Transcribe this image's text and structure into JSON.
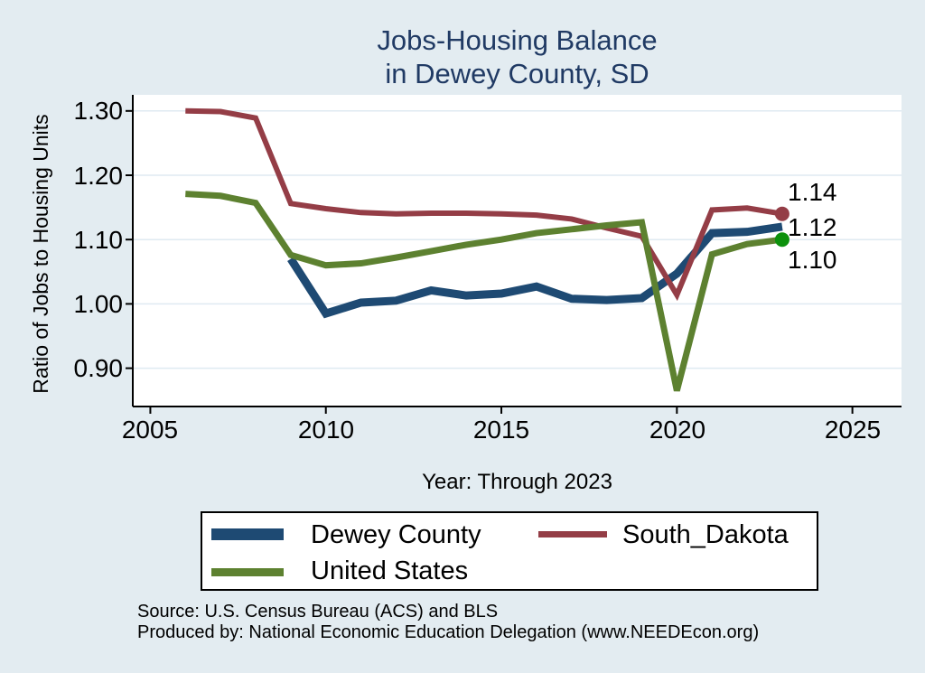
{
  "title": {
    "line1": "Jobs-Housing Balance",
    "line2": "in Dewey County, SD",
    "color": "#203a64"
  },
  "axes": {
    "y_title": "Ratio of Jobs to Housing Units",
    "x_title": "Year: Through 2023",
    "y_tick_labels": [
      "1.30",
      "1.20",
      "1.10",
      "1.00",
      "0.90"
    ],
    "x_tick_labels": [
      "2005",
      "2010",
      "2015",
      "2020",
      "2025"
    ]
  },
  "annotations": {
    "end_labels": [
      {
        "text": "1.14",
        "series": "South_Dakota"
      },
      {
        "text": "1.12",
        "series": "Dewey County"
      },
      {
        "text": "1.10",
        "series": "United States"
      }
    ]
  },
  "legend": {
    "items": [
      {
        "label": "Dewey County",
        "color": "#1e4a73"
      },
      {
        "label": "South_Dakota",
        "color": "#943d46"
      },
      {
        "label": "United States",
        "color": "#5d8130"
      }
    ]
  },
  "footer": {
    "line1": "Source: U.S. Census Bureau (ACS) and BLS",
    "line2": "Produced by: National Economic Education Delegation (www.NEEDEcon.org)"
  },
  "chart_data": {
    "type": "line",
    "title": "Jobs-Housing Balance in Dewey County, SD",
    "xlabel": "Year: Through 2023",
    "ylabel": "Ratio of Jobs to Housing Units",
    "xlim": [
      2004.5,
      2026.4
    ],
    "ylim": [
      0.84,
      1.325
    ],
    "yticks": [
      1.3,
      1.2,
      1.1,
      1.0,
      0.9
    ],
    "xticks": [
      2005,
      2010,
      2015,
      2020,
      2025
    ],
    "grid": "horizontal",
    "grid_color": "#dfeaf2",
    "plot_bg": "#ffffff",
    "page_bg": "#e3ecf1",
    "legend_position": "bottom",
    "series": [
      {
        "name": "Dewey County",
        "color": "#1e4a73",
        "stroke_width": 9,
        "end_label": "1.12",
        "marker_color": null,
        "x": [
          2009,
          2010,
          2011,
          2012,
          2013,
          2014,
          2015,
          2016,
          2017,
          2018,
          2019,
          2020,
          2021,
          2022,
          2023
        ],
        "y": [
          1.07,
          0.985,
          1.002,
          1.005,
          1.021,
          1.013,
          1.016,
          1.027,
          1.008,
          1.006,
          1.009,
          1.047,
          1.11,
          1.112,
          1.12
        ]
      },
      {
        "name": "South_Dakota",
        "color": "#943d46",
        "stroke_width": 6,
        "end_label": "1.14",
        "marker_color": "#943d46",
        "x": [
          2006,
          2007,
          2008,
          2009,
          2010,
          2011,
          2012,
          2013,
          2014,
          2015,
          2016,
          2017,
          2018,
          2019,
          2020,
          2021,
          2022,
          2023
        ],
        "y": [
          1.3,
          1.299,
          1.289,
          1.156,
          1.148,
          1.142,
          1.14,
          1.141,
          1.141,
          1.14,
          1.138,
          1.132,
          1.118,
          1.105,
          1.014,
          1.146,
          1.149,
          1.14
        ]
      },
      {
        "name": "United States",
        "color": "#5d8130",
        "stroke_width": 7,
        "end_label": "1.10",
        "marker_color": "#0c910c",
        "x": [
          2006,
          2007,
          2008,
          2009,
          2010,
          2011,
          2012,
          2013,
          2014,
          2015,
          2016,
          2017,
          2018,
          2019,
          2020,
          2021,
          2022,
          2023
        ],
        "y": [
          1.171,
          1.168,
          1.157,
          1.076,
          1.06,
          1.063,
          1.072,
          1.082,
          1.092,
          1.1,
          1.11,
          1.116,
          1.122,
          1.127,
          0.865,
          1.077,
          1.093,
          1.1
        ]
      }
    ]
  }
}
